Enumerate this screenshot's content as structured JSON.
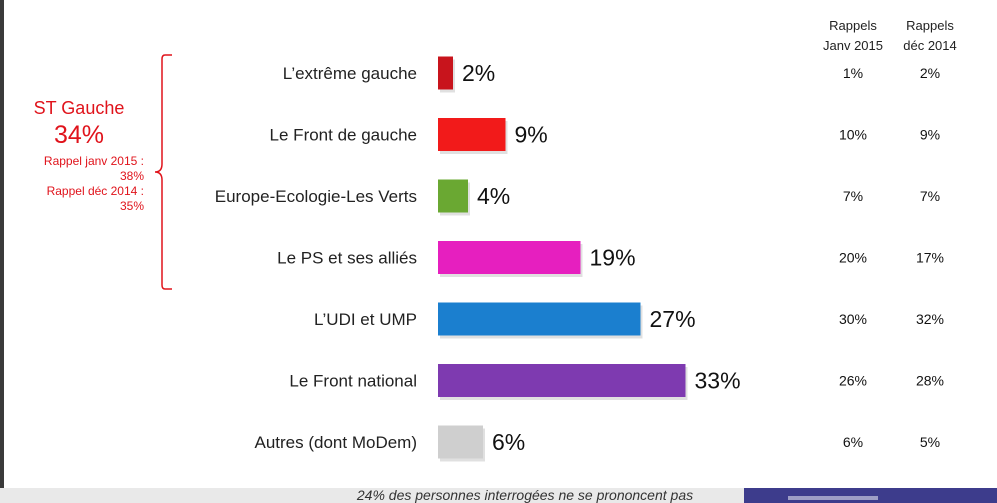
{
  "group": {
    "title": "ST Gauche",
    "total": "34%",
    "recall1": "Rappel janv 2015 :",
    "recall1_value": "38%",
    "recall2": "Rappel déc 2014 :",
    "recall2_value": "35%"
  },
  "recall_headers": {
    "col1_line1": "Rappels",
    "col1_line2": "Janv 2015",
    "col2_line1": "Rappels",
    "col2_line2": "déc 2014"
  },
  "footnote": "24% des personnes interrogées ne se prononcent pas",
  "chart_data": {
    "type": "bar",
    "orientation": "horizontal",
    "categories": [
      "L’extrême gauche",
      "Le Front de gauche",
      "Europe-Ecologie-Les Verts",
      "Le PS et ses alliés",
      "L’UDI et UMP",
      "Le Front national",
      "Autres (dont MoDem)"
    ],
    "values": [
      2,
      9,
      4,
      19,
      27,
      33,
      6
    ],
    "value_labels": [
      "2%",
      "9%",
      "4%",
      "19%",
      "27%",
      "33%",
      "6%"
    ],
    "colors": [
      "#c8141c",
      "#f21a1a",
      "#6aa832",
      "#e61fbf",
      "#1b7fcf",
      "#7e3ab0",
      "#cfcfcf"
    ],
    "recall_janv_2015": [
      "1%",
      "10%",
      "7%",
      "20%",
      "30%",
      "26%",
      "6%"
    ],
    "recall_dec_2014": [
      "2%",
      "9%",
      "7%",
      "17%",
      "32%",
      "28%",
      "5%"
    ],
    "unit": "%"
  }
}
